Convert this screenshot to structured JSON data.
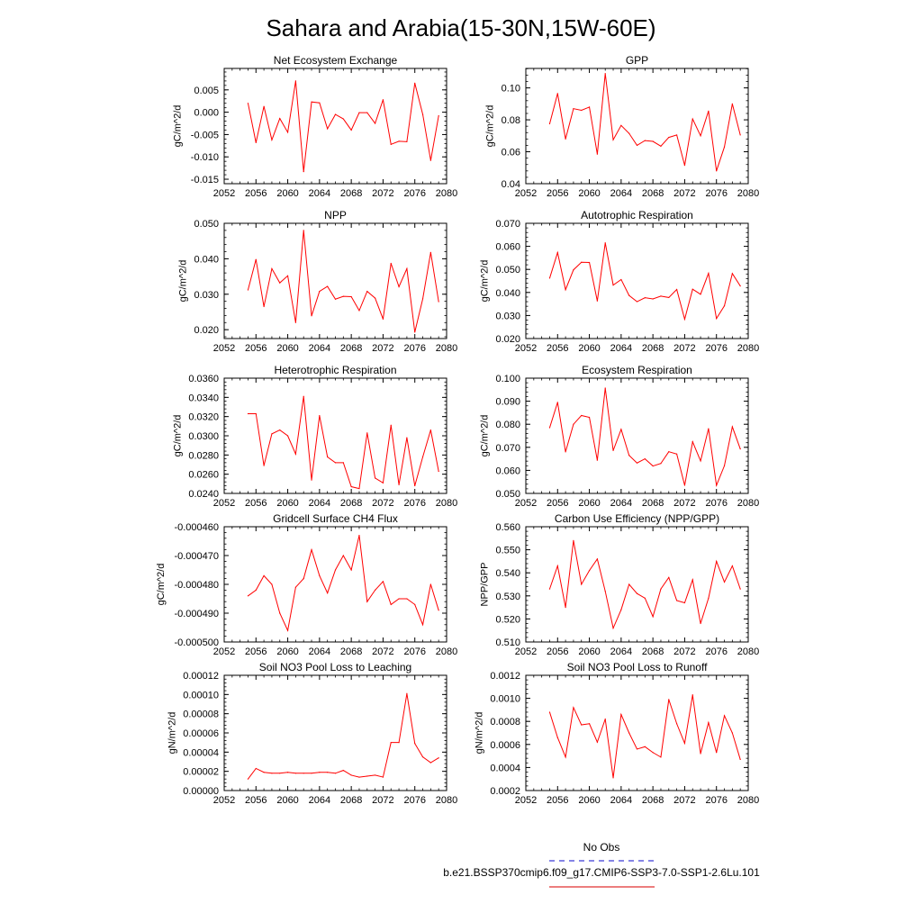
{
  "title": "Sahara and Arabia(15-30N,15W-60E)",
  "legend": {
    "entries": [
      {
        "label": "No Obs",
        "color": "#3b3bd6",
        "style": "dashed"
      },
      {
        "label": "b.e21.BSSP370cmip6.f09_g17.CMIP6-SSP3-7.0-SSP1-2.6Lu.101",
        "color": "#e03030",
        "style": "solid"
      }
    ]
  },
  "colors": {
    "series": "#ff0000",
    "axis": "#000000"
  },
  "chart_data": [
    {
      "type": "line",
      "title": "Net Ecosystem Exchange",
      "ylabel": "gC/m^2/d",
      "xlim": [
        2052,
        2080
      ],
      "ylim": [
        -0.016,
        0.0098
      ],
      "xticks": [
        2052,
        2056,
        2060,
        2064,
        2068,
        2072,
        2076,
        2080
      ],
      "xtick_labels": [
        "2052",
        "2056",
        "2060",
        "2064",
        "2068",
        "2072",
        "2076",
        "2080"
      ],
      "yticks": [
        0.005,
        0.0,
        -0.005,
        -0.01,
        -0.015
      ],
      "ytick_labels": [
        "0.005",
        "0.000",
        "-0.005",
        "-0.010",
        "-0.015"
      ],
      "x": [
        2055,
        2056,
        2057,
        2058,
        2059,
        2060,
        2061,
        2062,
        2063,
        2064,
        2065,
        2066,
        2067,
        2068,
        2069,
        2070,
        2071,
        2072,
        2073,
        2074,
        2075,
        2076,
        2077,
        2078,
        2079
      ],
      "values": [
        0.002,
        -0.0068,
        0.0013,
        -0.0062,
        -0.0014,
        -0.0045,
        0.007,
        -0.0133,
        0.0023,
        0.0021,
        -0.0037,
        -0.0005,
        -0.0015,
        -0.004,
        -0.0001,
        -0.0001,
        -0.0025,
        0.0028,
        -0.0072,
        -0.0065,
        -0.0066,
        0.0065,
        -0.0005,
        -0.0108,
        -0.0008
      ]
    },
    {
      "type": "line",
      "title": "GPP",
      "ylabel": "gC/m^2/d",
      "xlim": [
        2052,
        2080
      ],
      "ylim": [
        0.04,
        0.1122
      ],
      "xticks": [
        2052,
        2056,
        2060,
        2064,
        2068,
        2072,
        2076,
        2080
      ],
      "xtick_labels": [
        "2052",
        "2056",
        "2060",
        "2064",
        "2068",
        "2072",
        "2076",
        "2080"
      ],
      "yticks": [
        0.1,
        0.08,
        0.06,
        0.04
      ],
      "ytick_labels": [
        "0.10",
        "0.08",
        "0.06",
        "0.04"
      ],
      "x": [
        2055,
        2056,
        2057,
        2058,
        2059,
        2060,
        2061,
        2062,
        2063,
        2064,
        2065,
        2066,
        2067,
        2068,
        2069,
        2070,
        2071,
        2072,
        2073,
        2074,
        2075,
        2076,
        2077,
        2078,
        2079
      ],
      "values": [
        0.0775,
        0.0965,
        0.068,
        0.087,
        0.086,
        0.088,
        0.0585,
        0.109,
        0.0675,
        0.0765,
        0.0715,
        0.064,
        0.067,
        0.0665,
        0.0635,
        0.069,
        0.0705,
        0.0515,
        0.0805,
        0.07,
        0.0855,
        0.048,
        0.063,
        0.09,
        0.0705
      ]
    },
    {
      "type": "line",
      "title": "NPP",
      "ylabel": "gC/m^2/d",
      "xlim": [
        2052,
        2080
      ],
      "ylim": [
        0.0175,
        0.05
      ],
      "xticks": [
        2052,
        2056,
        2060,
        2064,
        2068,
        2072,
        2076,
        2080
      ],
      "xtick_labels": [
        "2052",
        "2056",
        "2060",
        "2064",
        "2068",
        "2072",
        "2076",
        "2080"
      ],
      "yticks": [
        0.05,
        0.04,
        0.03,
        0.02
      ],
      "ytick_labels": [
        "0.050",
        "0.040",
        "0.030",
        "0.020"
      ],
      "x": [
        2055,
        2056,
        2057,
        2058,
        2059,
        2060,
        2061,
        2062,
        2063,
        2064,
        2065,
        2066,
        2067,
        2068,
        2069,
        2070,
        2071,
        2072,
        2073,
        2074,
        2075,
        2076,
        2077,
        2078,
        2079
      ],
      "values": [
        0.0312,
        0.0398,
        0.0265,
        0.0372,
        0.0332,
        0.0352,
        0.022,
        0.048,
        0.0239,
        0.0308,
        0.0322,
        0.0286,
        0.0294,
        0.0293,
        0.0254,
        0.0308,
        0.0289,
        0.023,
        0.0387,
        0.0321,
        0.0372,
        0.0193,
        0.0287,
        0.0418,
        0.0279
      ]
    },
    {
      "type": "line",
      "title": "Autotrophic Respiration",
      "ylabel": "gC/m^2/d",
      "xlim": [
        2052,
        2080
      ],
      "ylim": [
        0.02,
        0.07
      ],
      "xticks": [
        2052,
        2056,
        2060,
        2064,
        2068,
        2072,
        2076,
        2080
      ],
      "xtick_labels": [
        "2052",
        "2056",
        "2060",
        "2064",
        "2068",
        "2072",
        "2076",
        "2080"
      ],
      "yticks": [
        0.07,
        0.06,
        0.05,
        0.04,
        0.03,
        0.02
      ],
      "ytick_labels": [
        "0.070",
        "0.060",
        "0.050",
        "0.040",
        "0.030",
        "0.020"
      ],
      "x": [
        2055,
        2056,
        2057,
        2058,
        2059,
        2060,
        2061,
        2062,
        2063,
        2064,
        2065,
        2066,
        2067,
        2068,
        2069,
        2070,
        2071,
        2072,
        2073,
        2074,
        2075,
        2076,
        2077,
        2078,
        2079
      ],
      "values": [
        0.0462,
        0.0573,
        0.0412,
        0.0498,
        0.0531,
        0.053,
        0.0363,
        0.0615,
        0.0432,
        0.0456,
        0.0387,
        0.036,
        0.0377,
        0.0372,
        0.0384,
        0.0378,
        0.0413,
        0.0284,
        0.0414,
        0.0392,
        0.0483,
        0.0287,
        0.0342,
        0.0482,
        0.0428
      ]
    },
    {
      "type": "line",
      "title": "Heterotrophic Respiration",
      "ylabel": "gC/m^2/d",
      "xlim": [
        2052,
        2080
      ],
      "ylim": [
        0.024,
        0.036
      ],
      "xticks": [
        2052,
        2056,
        2060,
        2064,
        2068,
        2072,
        2076,
        2080
      ],
      "xtick_labels": [
        "2052",
        "2056",
        "2060",
        "2064",
        "2068",
        "2072",
        "2076",
        "2080"
      ],
      "yticks": [
        0.036,
        0.034,
        0.032,
        0.03,
        0.028,
        0.026,
        0.024
      ],
      "ytick_labels": [
        "0.0360",
        "0.0340",
        "0.0320",
        "0.0300",
        "0.0280",
        "0.0260",
        "0.0240"
      ],
      "x": [
        2055,
        2056,
        2057,
        2058,
        2059,
        2060,
        2061,
        2062,
        2063,
        2064,
        2065,
        2066,
        2067,
        2068,
        2069,
        2070,
        2071,
        2072,
        2073,
        2074,
        2075,
        2076,
        2077,
        2078,
        2079
      ],
      "values": [
        0.0323,
        0.0323,
        0.0269,
        0.0302,
        0.0306,
        0.03,
        0.0281,
        0.0341,
        0.0254,
        0.0321,
        0.0278,
        0.0272,
        0.0272,
        0.0247,
        0.0245,
        0.0303,
        0.0256,
        0.0251,
        0.0311,
        0.0249,
        0.0298,
        0.0248,
        0.0278,
        0.0306,
        0.0263
      ]
    },
    {
      "type": "line",
      "title": "Ecosystem Respiration",
      "ylabel": "gC/m^2/d",
      "xlim": [
        2052,
        2080
      ],
      "ylim": [
        0.05,
        0.1
      ],
      "xticks": [
        2052,
        2056,
        2060,
        2064,
        2068,
        2072,
        2076,
        2080
      ],
      "xtick_labels": [
        "2052",
        "2056",
        "2060",
        "2064",
        "2068",
        "2072",
        "2076",
        "2080"
      ],
      "yticks": [
        0.1,
        0.09,
        0.08,
        0.07,
        0.06,
        0.05
      ],
      "ytick_labels": [
        "0.100",
        "0.090",
        "0.080",
        "0.070",
        "0.060",
        "0.050"
      ],
      "x": [
        2055,
        2056,
        2057,
        2058,
        2059,
        2060,
        2061,
        2062,
        2063,
        2064,
        2065,
        2066,
        2067,
        2068,
        2069,
        2070,
        2071,
        2072,
        2073,
        2074,
        2075,
        2076,
        2077,
        2078,
        2079
      ],
      "values": [
        0.0785,
        0.0895,
        0.068,
        0.08,
        0.0838,
        0.083,
        0.0644,
        0.0957,
        0.0686,
        0.0778,
        0.0665,
        0.0632,
        0.065,
        0.0619,
        0.063,
        0.0681,
        0.0671,
        0.0535,
        0.0724,
        0.0641,
        0.0781,
        0.0535,
        0.062,
        0.0789,
        0.0693
      ]
    },
    {
      "type": "line",
      "title": "Gridcell Surface CH4 Flux",
      "ylabel": "gC/m^2/d",
      "xlim": [
        2052,
        2080
      ],
      "ylim": [
        -0.0005,
        -0.00046
      ],
      "xticks": [
        2052,
        2056,
        2060,
        2064,
        2068,
        2072,
        2076,
        2080
      ],
      "xtick_labels": [
        "2052",
        "2056",
        "2060",
        "2064",
        "2068",
        "2072",
        "2076",
        "2080"
      ],
      "yticks": [
        -0.00046,
        -0.00047,
        -0.00048,
        -0.00049,
        -0.0005
      ],
      "ytick_labels": [
        "-0.000460",
        "-0.000470",
        "-0.000480",
        "-0.000490",
        "-0.000500"
      ],
      "x": [
        2055,
        2056,
        2057,
        2058,
        2059,
        2060,
        2061,
        2062,
        2063,
        2064,
        2065,
        2066,
        2067,
        2068,
        2069,
        2070,
        2071,
        2072,
        2073,
        2074,
        2075,
        2076,
        2077,
        2078,
        2079
      ],
      "values": [
        -0.000484,
        -0.000482,
        -0.000477,
        -0.00048,
        -0.00049,
        -0.000496,
        -0.000481,
        -0.000478,
        -0.000468,
        -0.000477,
        -0.000483,
        -0.000475,
        -0.00047,
        -0.000475,
        -0.000463,
        -0.000486,
        -0.000482,
        -0.000479,
        -0.000487,
        -0.000485,
        -0.000485,
        -0.000487,
        -0.000494,
        -0.00048,
        -0.000489
      ]
    },
    {
      "type": "line",
      "title": "Carbon Use Efficiency (NPP/GPP)",
      "ylabel": "NPP/GPP",
      "xlim": [
        2052,
        2080
      ],
      "ylim": [
        0.51,
        0.56
      ],
      "xticks": [
        2052,
        2056,
        2060,
        2064,
        2068,
        2072,
        2076,
        2080
      ],
      "xtick_labels": [
        "2052",
        "2056",
        "2060",
        "2064",
        "2068",
        "2072",
        "2076",
        "2080"
      ],
      "yticks": [
        0.56,
        0.55,
        0.54,
        0.53,
        0.52,
        0.51
      ],
      "ytick_labels": [
        "0.560",
        "0.550",
        "0.540",
        "0.530",
        "0.520",
        "0.510"
      ],
      "x": [
        2055,
        2056,
        2057,
        2058,
        2059,
        2060,
        2061,
        2062,
        2063,
        2064,
        2065,
        2066,
        2067,
        2068,
        2069,
        2070,
        2071,
        2072,
        2073,
        2074,
        2075,
        2076,
        2077,
        2078,
        2079
      ],
      "values": [
        0.533,
        0.543,
        0.525,
        0.554,
        0.535,
        0.541,
        0.546,
        0.532,
        0.516,
        0.524,
        0.535,
        0.531,
        0.529,
        0.521,
        0.533,
        0.538,
        0.528,
        0.527,
        0.537,
        0.518,
        0.529,
        0.545,
        0.536,
        0.543,
        0.533
      ]
    },
    {
      "type": "line",
      "title": "Soil NO3 Pool Loss to Leaching",
      "ylabel": "gN/m^2/d",
      "xlim": [
        2052,
        2080
      ],
      "ylim": [
        0.0,
        0.00012
      ],
      "xticks": [
        2052,
        2056,
        2060,
        2064,
        2068,
        2072,
        2076,
        2080
      ],
      "xtick_labels": [
        "2052",
        "2056",
        "2060",
        "2064",
        "2068",
        "2072",
        "2076",
        "2080"
      ],
      "yticks": [
        0.00012,
        0.0001,
        8e-05,
        6e-05,
        4e-05,
        2e-05,
        0.0
      ],
      "ytick_labels": [
        "0.00012",
        "0.00010",
        "0.00008",
        "0.00006",
        "0.00004",
        "0.00002",
        "0.00000"
      ],
      "x": [
        2055,
        2056,
        2057,
        2058,
        2059,
        2060,
        2061,
        2062,
        2063,
        2064,
        2065,
        2066,
        2067,
        2068,
        2069,
        2070,
        2071,
        2072,
        2073,
        2074,
        2075,
        2076,
        2077,
        2078,
        2079
      ],
      "values": [
        1.2e-05,
        2.3e-05,
        1.9e-05,
        1.8e-05,
        1.8e-05,
        1.9e-05,
        1.8e-05,
        1.8e-05,
        1.8e-05,
        1.9e-05,
        1.9e-05,
        1.8e-05,
        2.1e-05,
        1.6e-05,
        1.4e-05,
        1.5e-05,
        1.6e-05,
        1.4e-05,
        5e-05,
        5e-05,
        0.000101,
        4.9e-05,
        3.5e-05,
        2.9e-05,
        3.4e-05
      ]
    },
    {
      "type": "line",
      "title": "Soil NO3 Pool Loss to Runoff",
      "ylabel": "gN/m^2/d",
      "xlim": [
        2052,
        2080
      ],
      "ylim": [
        0.0002,
        0.0012
      ],
      "xticks": [
        2052,
        2056,
        2060,
        2064,
        2068,
        2072,
        2076,
        2080
      ],
      "xtick_labels": [
        "2052",
        "2056",
        "2060",
        "2064",
        "2068",
        "2072",
        "2076",
        "2080"
      ],
      "yticks": [
        0.0012,
        0.001,
        0.0008,
        0.0006,
        0.0004,
        0.0002
      ],
      "ytick_labels": [
        "0.0012",
        "0.0010",
        "0.0008",
        "0.0006",
        "0.0004",
        "0.0002"
      ],
      "x": [
        2055,
        2056,
        2057,
        2058,
        2059,
        2060,
        2061,
        2062,
        2063,
        2064,
        2065,
        2066,
        2067,
        2068,
        2069,
        2070,
        2071,
        2072,
        2073,
        2074,
        2075,
        2076,
        2077,
        2078,
        2079
      ],
      "values": [
        0.00088,
        0.00066,
        0.00049,
        0.00092,
        0.00077,
        0.00078,
        0.00062,
        0.00082,
        0.00031,
        0.00086,
        0.0007,
        0.00056,
        0.00058,
        0.00053,
        0.00049,
        0.00099,
        0.00078,
        0.00061,
        0.00103,
        0.00052,
        0.00079,
        0.00053,
        0.00085,
        0.0007,
        0.00047
      ]
    }
  ]
}
